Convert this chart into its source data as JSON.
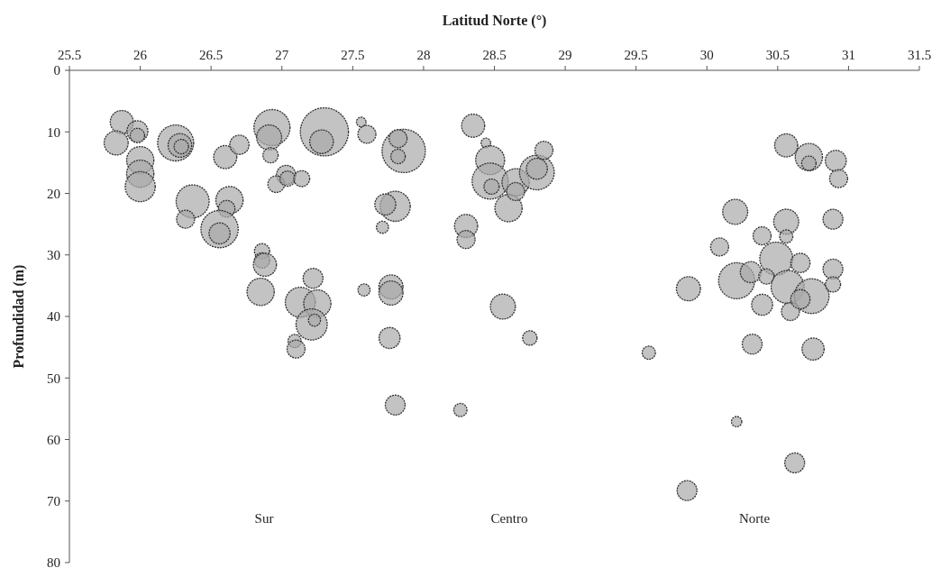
{
  "chart_data": {
    "type": "bubble",
    "xlabel": "Latitud Norte (°)",
    "ylabel": "Profundidad (m)",
    "xlim": [
      25.5,
      31.5
    ],
    "xticks": [
      25.5,
      26,
      26.5,
      27,
      27.5,
      28,
      28.5,
      29,
      29.5,
      30,
      30.5,
      31,
      31.5
    ],
    "ylim": [
      80,
      0
    ],
    "yticks": [
      0,
      10,
      20,
      30,
      40,
      50,
      60,
      70,
      80
    ],
    "grid": false,
    "series": [
      {
        "color": "#a9a9a9",
        "x": [
          25.87,
          25.83,
          25.98,
          25.98,
          26.0,
          26.0,
          26.0,
          26.25,
          26.28,
          26.29,
          26.6,
          26.7,
          26.93,
          26.91,
          26.92,
          27.3,
          27.28,
          27.56,
          27.6,
          27.03,
          26.96,
          27.04,
          27.14,
          26.37,
          26.32,
          26.63,
          26.61,
          26.56,
          26.56,
          26.86,
          26.86,
          26.88,
          26.85,
          27.22,
          27.13,
          27.25,
          27.21,
          27.23,
          27.09,
          27.1,
          27.58,
          27.86,
          27.82,
          27.82,
          27.8,
          27.73,
          27.71,
          27.77,
          27.77,
          27.76,
          27.8,
          28.35,
          28.44,
          28.47,
          28.47,
          28.48,
          28.6,
          28.65,
          28.65,
          28.8,
          28.8,
          28.85,
          28.3,
          28.3,
          28.56,
          28.75,
          28.26,
          30.56,
          30.72,
          30.72,
          30.91,
          30.93,
          30.2,
          30.56,
          30.56,
          30.89,
          30.39,
          30.09,
          30.49,
          30.21,
          30.31,
          30.66,
          30.89,
          30.42,
          30.57,
          30.74,
          30.89,
          30.39,
          30.59,
          30.66,
          29.87,
          30.32,
          30.75,
          29.59,
          30.21,
          30.62,
          29.86
        ],
        "values": [
          8.4,
          11.8,
          9.9,
          10.6,
          14.6,
          16.8,
          18.9,
          11.8,
          12.2,
          12.4,
          14.1,
          12.1,
          9.3,
          10.9,
          13.8,
          10.0,
          11.6,
          8.4,
          10.4,
          17.0,
          18.5,
          17.6,
          17.6,
          21.3,
          24.2,
          21.1,
          22.5,
          25.8,
          26.5,
          29.4,
          30.9,
          31.6,
          36.0,
          33.8,
          37.7,
          37.9,
          41.3,
          40.6,
          44.0,
          45.3,
          35.7,
          13.1,
          11.1,
          14.0,
          22.1,
          21.8,
          25.5,
          35.2,
          36.2,
          43.5,
          54.4,
          9.0,
          11.8,
          14.6,
          18.0,
          18.9,
          22.4,
          18.2,
          19.7,
          16.6,
          16.0,
          13.0,
          25.3,
          27.5,
          38.4,
          43.5,
          55.2,
          12.2,
          14.1,
          15.1,
          14.7,
          17.6,
          23.0,
          24.6,
          27.0,
          24.2,
          26.9,
          28.7,
          30.6,
          34.2,
          32.8,
          31.3,
          32.3,
          33.5,
          35.2,
          36.7,
          34.8,
          38.1,
          39.2,
          37.2,
          35.5,
          44.5,
          45.3,
          45.9,
          57.1,
          63.8,
          68.3
        ],
        "sizes": [
          0.23,
          0.25,
          0.19,
          0.09,
          0.32,
          0.32,
          0.39,
          0.56,
          0.24,
          0.09,
          0.23,
          0.16,
          0.56,
          0.27,
          0.1,
          1,
          0.24,
          0.04,
          0.14,
          0.16,
          0.12,
          0.1,
          0.11,
          0.47,
          0.14,
          0.32,
          0.12,
          0.6,
          0.19,
          0.1,
          0.1,
          0.23,
          0.32,
          0.17,
          0.39,
          0.32,
          0.42,
          0.063,
          0.075,
          0.14,
          0.063,
          0.81,
          0.14,
          0.09,
          0.39,
          0.19,
          0.063,
          0.25,
          0.25,
          0.19,
          0.17,
          0.23,
          0.04,
          0.36,
          0.56,
          0.1,
          0.32,
          0.32,
          0.14,
          0.52,
          0.19,
          0.14,
          0.23,
          0.14,
          0.27,
          0.09,
          0.075,
          0.23,
          0.32,
          0.09,
          0.19,
          0.14,
          0.27,
          0.27,
          0.075,
          0.17,
          0.14,
          0.14,
          0.47,
          0.56,
          0.19,
          0.16,
          0.17,
          0.1,
          0.47,
          0.52,
          0.1,
          0.19,
          0.14,
          0.16,
          0.25,
          0.17,
          0.21,
          0.075,
          0.046,
          0.17,
          0.17
        ]
      }
    ],
    "annotations": [
      "Sur",
      "Centro",
      "Norte"
    ]
  }
}
